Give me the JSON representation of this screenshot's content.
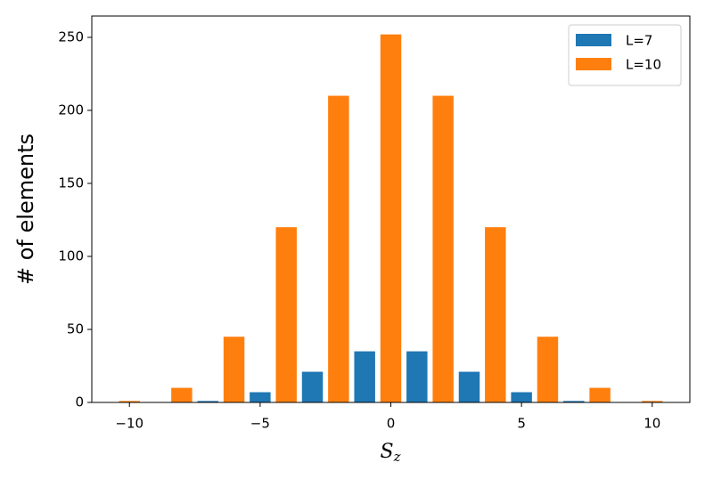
{
  "chart_data": {
    "type": "bar",
    "xlabel": [
      "S",
      "z"
    ],
    "ylabel": "# of elements",
    "series": [
      {
        "name": "L=7",
        "color": "#1f77b4",
        "x": [
          -7,
          -5,
          -3,
          -1,
          1,
          3,
          5,
          7
        ],
        "values": [
          1,
          7,
          21,
          35,
          35,
          21,
          7,
          1
        ]
      },
      {
        "name": "L=10",
        "color": "#ff7f0e",
        "x": [
          -10,
          -8,
          -6,
          -4,
          -2,
          0,
          2,
          4,
          6,
          8,
          10
        ],
        "values": [
          1,
          10,
          45,
          120,
          210,
          252,
          210,
          120,
          45,
          10,
          1
        ]
      }
    ],
    "bar_width": 0.8,
    "xlim": [
      -11.44,
      11.44
    ],
    "xticks": [
      {
        "value": -10,
        "label": "−10"
      },
      {
        "value": -5,
        "label": "−5"
      },
      0,
      5,
      10
    ],
    "ylim": [
      0,
      264.6
    ],
    "yticks": [
      0,
      50,
      100,
      150,
      200,
      250
    ],
    "legend": "upper-right",
    "grid": false
  }
}
